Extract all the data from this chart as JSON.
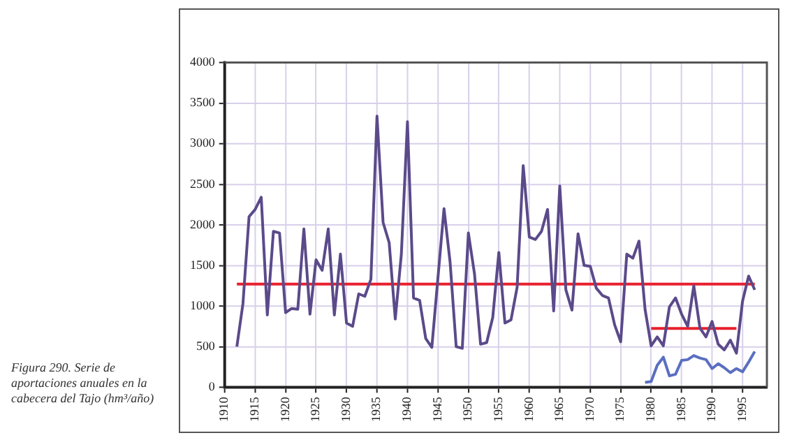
{
  "chart_data": {
    "type": "line",
    "annotations": [
      "Figura 290. Serie de aportaciones anuales en la cabecera del Tajo (hm³/año)"
    ],
    "xlim": [
      1910,
      1999
    ],
    "xticks": [
      1910,
      1915,
      1920,
      1925,
      1930,
      1935,
      1940,
      1945,
      1950,
      1955,
      1960,
      1965,
      1970,
      1975,
      1980,
      1985,
      1990,
      1995
    ],
    "ylim": [
      0,
      4000
    ],
    "yticks": [
      0,
      500,
      1000,
      1500,
      2000,
      2500,
      3000,
      3500,
      4000
    ],
    "grid": true,
    "legend": false,
    "marker": "none",
    "line_style": "solid",
    "series": [
      {
        "color": "#5b4a8a",
        "x": [
          1912,
          1913,
          1914,
          1915,
          1916,
          1917,
          1918,
          1919,
          1920,
          1921,
          1922,
          1923,
          1924,
          1925,
          1926,
          1927,
          1928,
          1929,
          1930,
          1931,
          1932,
          1933,
          1934,
          1935,
          1936,
          1937,
          1938,
          1939,
          1940,
          1941,
          1942,
          1943,
          1944,
          1946,
          1947,
          1948,
          1949,
          1950,
          1951,
          1952,
          1953,
          1954,
          1955,
          1956,
          1957,
          1958,
          1959,
          1960,
          1961,
          1962,
          1963,
          1964,
          1965,
          1966,
          1967,
          1968,
          1969,
          1970,
          1971,
          1972,
          1973,
          1974,
          1975,
          1976,
          1977,
          1978,
          1979,
          1980,
          1981,
          1982,
          1983,
          1984,
          1985,
          1986,
          1987,
          1988,
          1989,
          1990,
          1991,
          1992,
          1993,
          1994,
          1995,
          1996,
          1997
        ],
        "values": [
          500,
          1030,
          2100,
          2190,
          2340,
          890,
          1920,
          1900,
          920,
          970,
          960,
          1950,
          900,
          1570,
          1440,
          1950,
          890,
          1640,
          790,
          750,
          1150,
          1120,
          1330,
          3340,
          2030,
          1780,
          840,
          1640,
          3270,
          1100,
          1070,
          600,
          490,
          2200,
          1540,
          500,
          480,
          1900,
          1400,
          530,
          550,
          860,
          1660,
          790,
          830,
          1230,
          2730,
          1850,
          1820,
          1920,
          2190,
          940,
          2480,
          1200,
          950,
          1890,
          1500,
          1490,
          1220,
          1130,
          1100,
          770,
          560,
          1640,
          1590,
          1800,
          960,
          510,
          620,
          510,
          990,
          1100,
          900,
          750,
          1250,
          730,
          620,
          810,
          530,
          460,
          580,
          420,
          1060,
          1370,
          1200
        ]
      },
      {
        "color": "#5a6fc0",
        "x": [
          1979,
          1980,
          1981,
          1982,
          1983,
          1984,
          1985,
          1986,
          1987,
          1988,
          1989,
          1990,
          1991,
          1992,
          1993,
          1994,
          1995,
          1996,
          1997
        ],
        "values": [
          60,
          70,
          270,
          370,
          140,
          160,
          330,
          340,
          390,
          360,
          340,
          230,
          290,
          240,
          180,
          230,
          190,
          310,
          440
        ]
      },
      {
        "color": "#e8202e",
        "x": [
          1912,
          1997
        ],
        "values": [
          1270,
          1270
        ]
      },
      {
        "color": "#e8202e",
        "x": [
          1980,
          1994
        ],
        "values": [
          725,
          725
        ]
      }
    ]
  }
}
